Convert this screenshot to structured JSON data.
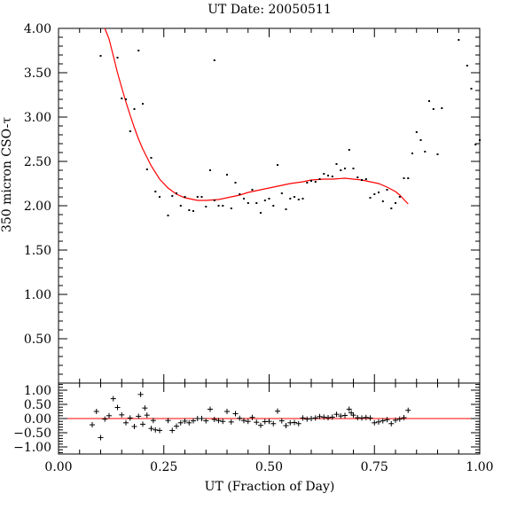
{
  "chart_data": {
    "type": "scatter",
    "title": "UT Date: 20050511",
    "xlabel": "UT (Fraction of Day)",
    "ylabel": "350 micron CSO-τ",
    "xlim": [
      0.0,
      1.0
    ],
    "x_ticks": [
      "0.00",
      "0.25",
      "0.50",
      "0.75",
      "1.00"
    ],
    "x_tick_values": [
      0.0,
      0.25,
      0.5,
      0.75,
      1.0
    ],
    "top_panel": {
      "ylim": [
        0.0,
        4.0
      ],
      "y_ticks": [
        "0.50",
        "1.00",
        "1.50",
        "2.00",
        "2.50",
        "3.00",
        "3.50",
        "4.00"
      ],
      "y_tick_values": [
        0.5,
        1.0,
        1.5,
        2.0,
        2.5,
        3.0,
        3.5,
        4.0
      ],
      "points": [
        [
          0.1,
          3.69
        ],
        [
          0.14,
          3.67
        ],
        [
          0.15,
          3.21
        ],
        [
          0.16,
          3.2
        ],
        [
          0.17,
          2.84
        ],
        [
          0.18,
          3.09
        ],
        [
          0.19,
          3.75
        ],
        [
          0.2,
          3.15
        ],
        [
          0.21,
          2.41
        ],
        [
          0.22,
          2.54
        ],
        [
          0.23,
          2.16
        ],
        [
          0.24,
          2.1
        ],
        [
          0.26,
          1.89
        ],
        [
          0.27,
          2.11
        ],
        [
          0.28,
          2.14
        ],
        [
          0.29,
          2.0
        ],
        [
          0.3,
          2.1
        ],
        [
          0.31,
          1.95
        ],
        [
          0.32,
          1.94
        ],
        [
          0.33,
          2.1
        ],
        [
          0.34,
          2.1
        ],
        [
          0.35,
          1.99
        ],
        [
          0.36,
          2.4
        ],
        [
          0.37,
          2.06
        ],
        [
          0.37,
          3.64
        ],
        [
          0.38,
          2.0
        ],
        [
          0.39,
          2.0
        ],
        [
          0.4,
          2.35
        ],
        [
          0.41,
          1.97
        ],
        [
          0.42,
          2.26
        ],
        [
          0.43,
          2.13
        ],
        [
          0.44,
          2.08
        ],
        [
          0.45,
          2.03
        ],
        [
          0.46,
          2.18
        ],
        [
          0.47,
          2.03
        ],
        [
          0.48,
          1.92
        ],
        [
          0.49,
          2.06
        ],
        [
          0.5,
          2.08
        ],
        [
          0.51,
          2.0
        ],
        [
          0.52,
          2.46
        ],
        [
          0.53,
          2.14
        ],
        [
          0.54,
          1.96
        ],
        [
          0.55,
          2.08
        ],
        [
          0.56,
          2.1
        ],
        [
          0.57,
          2.07
        ],
        [
          0.58,
          2.08
        ],
        [
          0.59,
          2.26
        ],
        [
          0.6,
          2.28
        ],
        [
          0.61,
          2.27
        ],
        [
          0.62,
          2.3
        ],
        [
          0.63,
          2.36
        ],
        [
          0.64,
          2.34
        ],
        [
          0.65,
          2.33
        ],
        [
          0.66,
          2.47
        ],
        [
          0.67,
          2.4
        ],
        [
          0.68,
          2.42
        ],
        [
          0.69,
          2.63
        ],
        [
          0.7,
          2.42
        ],
        [
          0.71,
          2.32
        ],
        [
          0.72,
          2.29
        ],
        [
          0.73,
          2.3
        ],
        [
          0.74,
          2.09
        ],
        [
          0.75,
          2.13
        ],
        [
          0.76,
          2.15
        ],
        [
          0.77,
          2.05
        ],
        [
          0.78,
          2.18
        ],
        [
          0.79,
          1.97
        ],
        [
          0.8,
          2.03
        ],
        [
          0.81,
          2.1
        ],
        [
          0.82,
          2.31
        ],
        [
          0.83,
          2.31
        ],
        [
          0.84,
          2.59
        ],
        [
          0.85,
          2.83
        ],
        [
          0.86,
          2.74
        ],
        [
          0.87,
          2.61
        ],
        [
          0.88,
          3.18
        ],
        [
          0.89,
          3.09
        ],
        [
          0.9,
          2.58
        ],
        [
          0.91,
          3.1
        ],
        [
          0.95,
          3.87
        ],
        [
          0.97,
          3.58
        ],
        [
          0.98,
          3.32
        ],
        [
          0.99,
          2.69
        ],
        [
          1.0,
          2.74
        ]
      ],
      "fit_curve": [
        [
          0.11,
          4.0
        ],
        [
          0.12,
          3.88
        ],
        [
          0.13,
          3.69
        ],
        [
          0.14,
          3.5
        ],
        [
          0.15,
          3.33
        ],
        [
          0.16,
          3.17
        ],
        [
          0.17,
          3.02
        ],
        [
          0.18,
          2.88
        ],
        [
          0.19,
          2.75
        ],
        [
          0.2,
          2.64
        ],
        [
          0.22,
          2.45
        ],
        [
          0.24,
          2.3
        ],
        [
          0.26,
          2.2
        ],
        [
          0.28,
          2.13
        ],
        [
          0.3,
          2.09
        ],
        [
          0.33,
          2.06
        ],
        [
          0.35,
          2.06
        ],
        [
          0.38,
          2.07
        ],
        [
          0.4,
          2.09
        ],
        [
          0.43,
          2.12
        ],
        [
          0.45,
          2.15
        ],
        [
          0.48,
          2.18
        ],
        [
          0.5,
          2.2
        ],
        [
          0.53,
          2.23
        ],
        [
          0.55,
          2.25
        ],
        [
          0.58,
          2.27
        ],
        [
          0.6,
          2.29
        ],
        [
          0.63,
          2.3
        ],
        [
          0.65,
          2.3
        ],
        [
          0.68,
          2.31
        ],
        [
          0.7,
          2.3
        ],
        [
          0.72,
          2.29
        ],
        [
          0.74,
          2.27
        ],
        [
          0.76,
          2.25
        ],
        [
          0.78,
          2.21
        ],
        [
          0.8,
          2.16
        ],
        [
          0.81,
          2.12
        ],
        [
          0.82,
          2.07
        ],
        [
          0.83,
          2.02
        ]
      ]
    },
    "bottom_panel": {
      "ylim": [
        -1.25,
        1.25
      ],
      "y_ticks": [
        "1.00",
        "0.50",
        "0.00",
        "−0.50",
        "−1.00"
      ],
      "y_tick_values": [
        1.0,
        0.5,
        0.0,
        -0.5,
        -1.0
      ],
      "zero_line": 0.0,
      "residuals": [
        [
          0.08,
          -0.22
        ],
        [
          0.09,
          0.25
        ],
        [
          0.1,
          -0.67
        ],
        [
          0.11,
          -0.02
        ],
        [
          0.12,
          0.1
        ],
        [
          0.13,
          0.7
        ],
        [
          0.14,
          0.39
        ],
        [
          0.15,
          0.13
        ],
        [
          0.16,
          -0.15
        ],
        [
          0.17,
          0.02
        ],
        [
          0.18,
          -0.28
        ],
        [
          0.19,
          0.08
        ],
        [
          0.195,
          0.85
        ],
        [
          0.2,
          -0.2
        ],
        [
          0.205,
          0.37
        ],
        [
          0.21,
          0.12
        ],
        [
          0.22,
          -0.35
        ],
        [
          0.225,
          -0.07
        ],
        [
          0.23,
          -0.4
        ],
        [
          0.24,
          -0.42
        ],
        [
          0.26,
          -0.07
        ],
        [
          0.27,
          -0.42
        ],
        [
          0.28,
          -0.27
        ],
        [
          0.29,
          -0.15
        ],
        [
          0.3,
          -0.09
        ],
        [
          0.31,
          -0.15
        ],
        [
          0.32,
          -0.08
        ],
        [
          0.33,
          0.0
        ],
        [
          0.34,
          0.0
        ],
        [
          0.35,
          -0.08
        ],
        [
          0.36,
          0.33
        ],
        [
          0.37,
          -0.03
        ],
        [
          0.38,
          -0.07
        ],
        [
          0.39,
          -0.1
        ],
        [
          0.4,
          0.25
        ],
        [
          0.41,
          -0.12
        ],
        [
          0.42,
          0.17
        ],
        [
          0.43,
          0.01
        ],
        [
          0.44,
          -0.07
        ],
        [
          0.45,
          -0.1
        ],
        [
          0.46,
          0.04
        ],
        [
          0.47,
          -0.13
        ],
        [
          0.48,
          -0.24
        ],
        [
          0.49,
          -0.11
        ],
        [
          0.5,
          -0.1
        ],
        [
          0.51,
          -0.18
        ],
        [
          0.52,
          0.26
        ],
        [
          0.53,
          -0.08
        ],
        [
          0.54,
          -0.25
        ],
        [
          0.55,
          -0.15
        ],
        [
          0.56,
          -0.14
        ],
        [
          0.57,
          -0.18
        ],
        [
          0.58,
          0.02
        ],
        [
          0.59,
          -0.02
        ],
        [
          0.6,
          0.0
        ],
        [
          0.61,
          0.02
        ],
        [
          0.62,
          0.07
        ],
        [
          0.63,
          0.05
        ],
        [
          0.64,
          0.03
        ],
        [
          0.65,
          0.05
        ],
        [
          0.66,
          0.15
        ],
        [
          0.67,
          0.09
        ],
        [
          0.68,
          0.11
        ],
        [
          0.69,
          0.33
        ],
        [
          0.695,
          0.2
        ],
        [
          0.7,
          0.12
        ],
        [
          0.71,
          0.03
        ],
        [
          0.72,
          0.02
        ],
        [
          0.73,
          0.04
        ],
        [
          0.74,
          0.02
        ],
        [
          0.75,
          -0.15
        ],
        [
          0.76,
          -0.12
        ],
        [
          0.77,
          -0.08
        ],
        [
          0.78,
          -0.04
        ],
        [
          0.79,
          -0.18
        ],
        [
          0.8,
          -0.06
        ],
        [
          0.81,
          -0.02
        ],
        [
          0.82,
          0.03
        ],
        [
          0.83,
          0.29
        ]
      ]
    }
  }
}
